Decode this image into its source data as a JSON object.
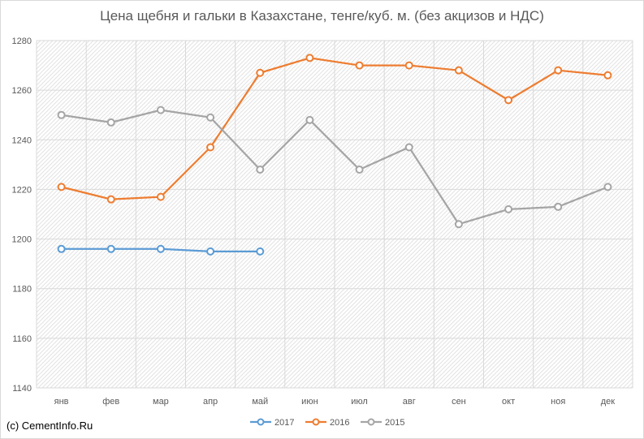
{
  "chart_data": {
    "type": "line",
    "title": "Цена щебня и гальки в Казахстане, тенге/куб. м. (без акцизов и НДС)",
    "xlabel": "",
    "ylabel": "",
    "categories": [
      "янв",
      "фев",
      "мар",
      "апр",
      "май",
      "июн",
      "июл",
      "авг",
      "сен",
      "окт",
      "ноя",
      "дек"
    ],
    "ylim": [
      1140,
      1280
    ],
    "yticks": [
      1140,
      1160,
      1180,
      1200,
      1220,
      1240,
      1260,
      1280
    ],
    "grid": true,
    "legend": "bottom",
    "series": [
      {
        "name": "2017",
        "color": "#5B9BD5",
        "values": [
          1196,
          1196,
          1196,
          1195,
          1195,
          null,
          null,
          null,
          null,
          null,
          null,
          null
        ]
      },
      {
        "name": "2016",
        "color": "#ED7D31",
        "values": [
          1221,
          1216,
          1217,
          1237,
          1267,
          1273,
          1270,
          1270,
          1268,
          1256,
          1268,
          1266
        ]
      },
      {
        "name": "2015",
        "color": "#A5A5A5",
        "values": [
          1250,
          1247,
          1252,
          1249,
          1228,
          1248,
          1228,
          1237,
          1206,
          1212,
          1213,
          1221
        ]
      }
    ]
  },
  "footer": {
    "copyright": "(c) CementInfo.Ru"
  }
}
